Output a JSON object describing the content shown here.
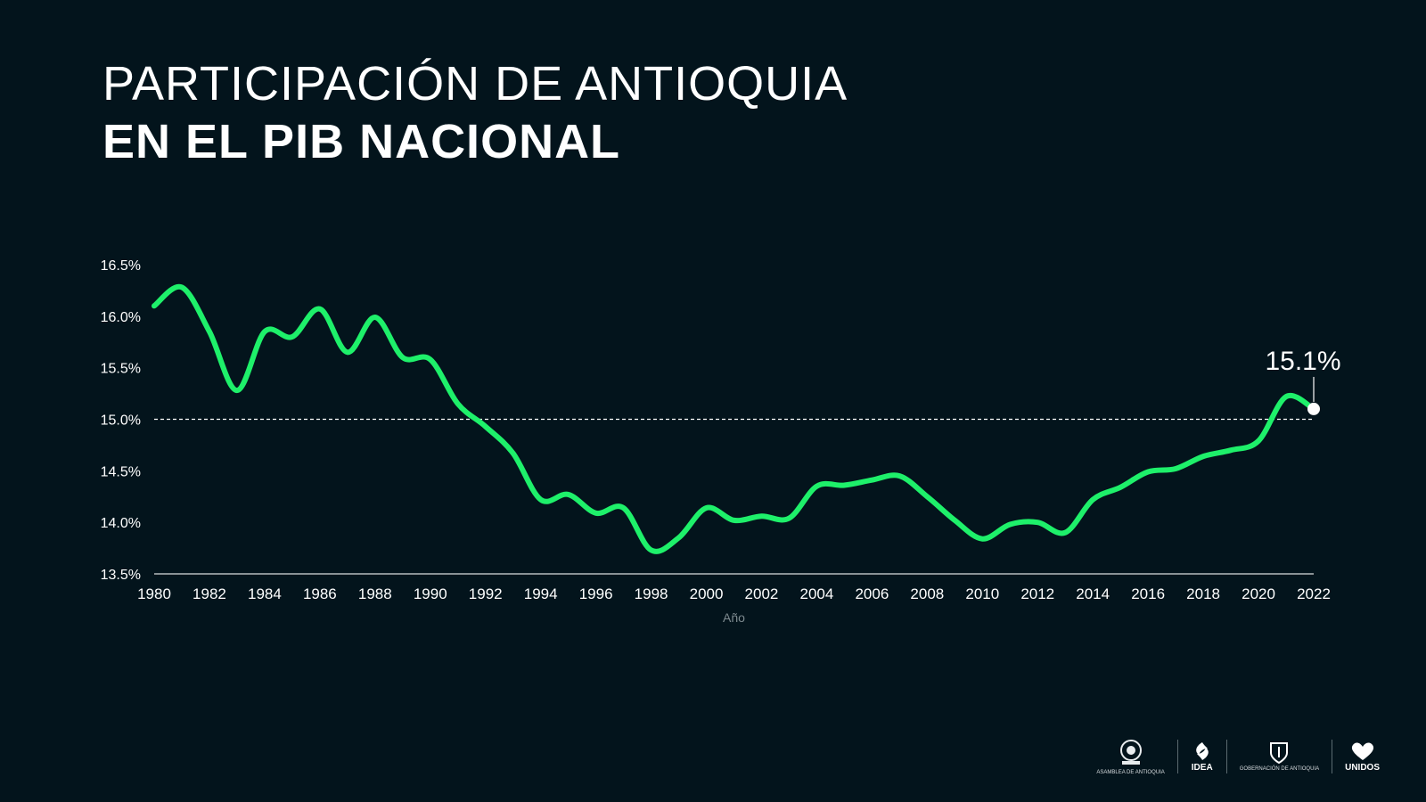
{
  "header": {
    "title_line1": "PARTICIPACIÓN DE ANTIOQUIA",
    "title_line2": "EN EL PIB NACIONAL"
  },
  "colors": {
    "background": "#03141c",
    "line": "#1ef06a",
    "text": "#ffffff",
    "axis_label": "#7d8a8f",
    "reference_line": "#ffffff"
  },
  "chart_data": {
    "type": "line",
    "title": "PARTICIPACIÓN DE ANTIOQUIA EN EL PIB NACIONAL",
    "xlabel": "Año",
    "ylabel": "",
    "x": [
      1980,
      1981,
      1982,
      1983,
      1984,
      1985,
      1986,
      1987,
      1988,
      1989,
      1990,
      1991,
      1992,
      1993,
      1994,
      1995,
      1996,
      1997,
      1998,
      1999,
      2000,
      2001,
      2002,
      2003,
      2004,
      2005,
      2006,
      2007,
      2008,
      2009,
      2010,
      2011,
      2012,
      2013,
      2014,
      2015,
      2016,
      2017,
      2018,
      2019,
      2020,
      2021,
      2022
    ],
    "series": [
      {
        "values": [
          16.1,
          16.28,
          15.85,
          15.28,
          15.85,
          15.8,
          16.07,
          15.65,
          15.99,
          15.6,
          15.58,
          15.15,
          14.93,
          14.67,
          14.22,
          14.27,
          14.09,
          14.14,
          13.73,
          13.85,
          14.14,
          14.02,
          14.06,
          14.04,
          14.35,
          14.36,
          14.41,
          14.45,
          14.25,
          14.02,
          13.84,
          13.98,
          14.0,
          13.9,
          14.22,
          14.34,
          14.49,
          14.52,
          14.64,
          14.7,
          14.79,
          15.22,
          15.1
        ]
      }
    ],
    "xticks": [
      "1980",
      "1982",
      "1984",
      "1986",
      "1988",
      "1990",
      "1992",
      "1994",
      "1996",
      "1998",
      "2000",
      "2002",
      "2004",
      "2006",
      "2008",
      "2010",
      "2012",
      "2014",
      "2016",
      "2018",
      "2020",
      "2022"
    ],
    "yticks": [
      "16.5%",
      "16.0%",
      "15.5%",
      "15.0%",
      "14.5%",
      "14.0%",
      "13.5%"
    ],
    "ylim": [
      13.5,
      16.5
    ],
    "xlim": [
      1980,
      2022
    ],
    "reference_line": {
      "y": 15.0,
      "style": "dashed"
    },
    "annotations": [
      {
        "x": 2022,
        "y": 15.1,
        "label": "15.1%"
      }
    ],
    "grid": false,
    "legend": "none"
  },
  "footer": {
    "logos": [
      {
        "icon": "coat-of-arms-icon",
        "label": "ASAMBLEA DE ANTIOQUIA"
      },
      {
        "icon": "idea-icon",
        "label": "IDEA"
      },
      {
        "icon": "government-shield-icon",
        "label": "GOBERNACIÓN DE ANTIOQUIA"
      },
      {
        "icon": "heart-icon",
        "label": "UNIDOS"
      }
    ]
  }
}
